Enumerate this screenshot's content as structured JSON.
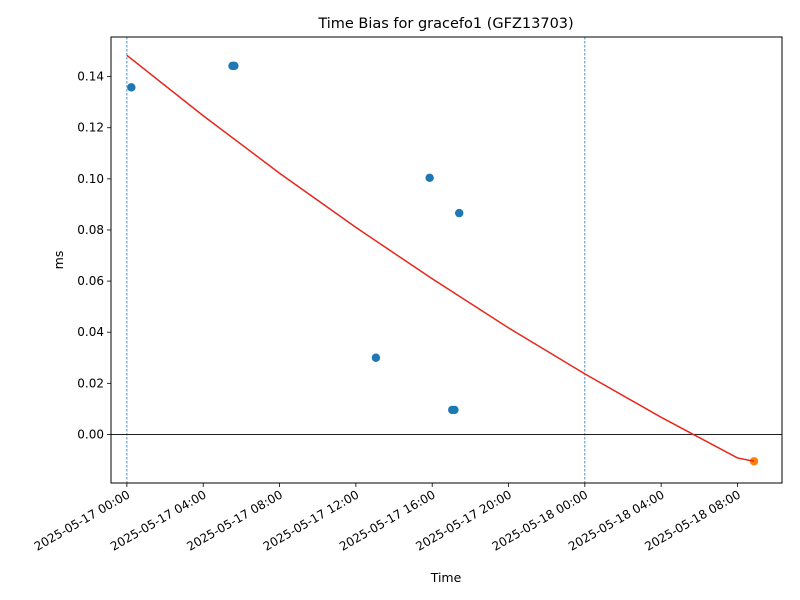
{
  "chart_data": {
    "type": "scatter",
    "title": "Time Bias for gracefo1 (GFZ13703)",
    "xlabel": "Time",
    "ylabel": "ms",
    "xlim": [
      "2025-05-16T23:10",
      "2025-05-18T10:20"
    ],
    "ylim": [
      -0.019,
      0.1555
    ],
    "x_ticks": [
      {
        "value": "2025-05-17T00:00",
        "label": "2025-05-17 00:00"
      },
      {
        "value": "2025-05-17T04:00",
        "label": "2025-05-17 04:00"
      },
      {
        "value": "2025-05-17T08:00",
        "label": "2025-05-17 08:00"
      },
      {
        "value": "2025-05-17T12:00",
        "label": "2025-05-17 12:00"
      },
      {
        "value": "2025-05-17T16:00",
        "label": "2025-05-17 16:00"
      },
      {
        "value": "2025-05-17T20:00",
        "label": "2025-05-17 20:00"
      },
      {
        "value": "2025-05-18T00:00",
        "label": "2025-05-18 00:00"
      },
      {
        "value": "2025-05-18T04:00",
        "label": "2025-05-18 04:00"
      },
      {
        "value": "2025-05-18T08:00",
        "label": "2025-05-18 08:00"
      }
    ],
    "y_ticks": [
      {
        "value": 0.0,
        "label": "0.00"
      },
      {
        "value": 0.02,
        "label": "0.02"
      },
      {
        "value": 0.04,
        "label": "0.04"
      },
      {
        "value": 0.06,
        "label": "0.06"
      },
      {
        "value": 0.08,
        "label": "0.08"
      },
      {
        "value": 0.1,
        "label": "0.10"
      },
      {
        "value": 0.12,
        "label": "0.12"
      },
      {
        "value": 0.14,
        "label": "0.14"
      }
    ],
    "series": [
      {
        "color": "#1f77b4",
        "points": [
          {
            "x": "2025-05-17T00:14",
            "y": 0.1358
          },
          {
            "x": "2025-05-17T05:32",
            "y": 0.1442
          },
          {
            "x": "2025-05-17T05:38",
            "y": 0.1442
          },
          {
            "x": "2025-05-17T13:03",
            "y": 0.03
          },
          {
            "x": "2025-05-17T15:52",
            "y": 0.1004
          },
          {
            "x": "2025-05-17T17:03",
            "y": 0.0096
          },
          {
            "x": "2025-05-17T17:10",
            "y": 0.0096
          },
          {
            "x": "2025-05-17T17:25",
            "y": 0.0866
          }
        ]
      },
      {
        "color": "#ff7f0e",
        "points": [
          {
            "x": "2025-05-18T08:52",
            "y": -0.0105
          }
        ]
      },
      {
        "type": "line",
        "color": "#e8261c",
        "points": [
          {
            "x": "2025-05-17T00:00",
            "y": 0.1483
          },
          {
            "x": "2025-05-17T04:00",
            "y": 0.1247
          },
          {
            "x": "2025-05-17T08:00",
            "y": 0.1022
          },
          {
            "x": "2025-05-17T12:00",
            "y": 0.081
          },
          {
            "x": "2025-05-17T16:00",
            "y": 0.0609
          },
          {
            "x": "2025-05-17T20:00",
            "y": 0.0417
          },
          {
            "x": "2025-05-18T00:00",
            "y": 0.0237
          },
          {
            "x": "2025-05-18T04:00",
            "y": 0.0067
          },
          {
            "x": "2025-05-18T08:00",
            "y": -0.0092
          },
          {
            "x": "2025-05-18T08:52",
            "y": -0.0105
          }
        ]
      }
    ],
    "vertical_lines": [
      {
        "x": "2025-05-17T00:00",
        "style": "dashed",
        "color": "#1f77b4"
      },
      {
        "x": "2025-05-18T00:00",
        "style": "dashed",
        "color": "#1f77b4"
      }
    ],
    "horizontal_lines": [
      {
        "y": 0,
        "color": "#000000"
      }
    ],
    "grid": false,
    "legend": "none"
  }
}
